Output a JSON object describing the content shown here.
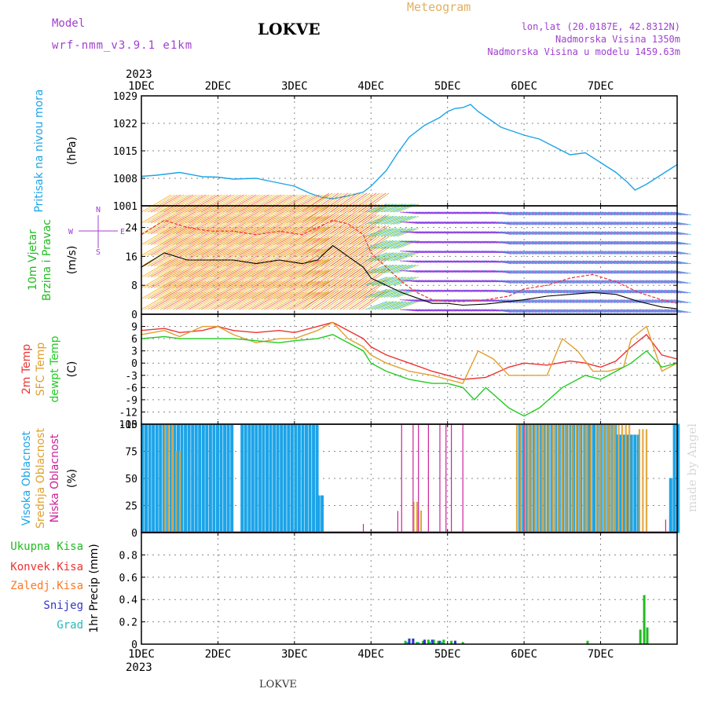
{
  "header": {
    "model_label": "Model",
    "model_value": "wrf-nmm_v3.9.1 e1km",
    "station": "LOKVE",
    "meteogram_label": "Meteogram",
    "lonlat": "lon,lat (20.0187E, 42.8312N)",
    "elevation": "Nadmorska Visina 1350m",
    "model_elevation": "Nadmorska Visina u modelu 1459.63m",
    "year_top": "2023",
    "year_bottom": "2023",
    "footer_station": "LOKVE",
    "credit": "made by Angel"
  },
  "colors": {
    "pressure": "#1ca4e8",
    "temp2m": "#ee3333",
    "sfc_temp": "#e0a030",
    "dewpoint": "#22cc22",
    "high_cloud": "#1ca4e8",
    "mid_cloud": "#e0a030",
    "low_cloud": "#cc2299",
    "purple": "#a040d0",
    "total_precip": "#22bb22",
    "conv_precip": "#ee3333",
    "frozen": "#ff7722",
    "snow": "#3333cc",
    "graupel": "#22bbbb"
  },
  "chart_data": [
    {
      "type": "line",
      "panel": "pressure",
      "title": "",
      "xlabel": "",
      "ylabel_lines": [
        "Pritisak na nivou mora",
        "(hPa)"
      ],
      "x_ticks": [
        "1DEC",
        "2DEC",
        "3DEC",
        "4DEC",
        "5DEC",
        "6DEC",
        "7DEC"
      ],
      "y_ticks": [
        1001,
        1008,
        1015,
        1022,
        1029
      ],
      "ylim": [
        1001,
        1029
      ],
      "grid": true,
      "series": [
        {
          "x": [
            0,
            0.2,
            0.5,
            0.8,
            1.0,
            1.2,
            1.5,
            1.7,
            2.0,
            2.2,
            2.35,
            2.5,
            2.7,
            2.9,
            3.0,
            3.2,
            3.35,
            3.5,
            3.7,
            3.9,
            4.0,
            4.1,
            4.2,
            4.3,
            4.4,
            4.55,
            4.7,
            4.85,
            5.0,
            5.2,
            5.4,
            5.6,
            5.8,
            6.0,
            6.2,
            6.35,
            6.45,
            6.6,
            6.8,
            7.0
          ],
          "y": [
            1008.5,
            1008.8,
            1009.5,
            1008.4,
            1008.3,
            1007.8,
            1008.0,
            1007.2,
            1006.0,
            1004.2,
            1003.2,
            1002.8,
            1003.5,
            1004.5,
            1006.0,
            1010.0,
            1014.5,
            1018.5,
            1021.5,
            1023.5,
            1025.0,
            1025.8,
            1026.0,
            1026.8,
            1025.0,
            1023.0,
            1021.0,
            1020.0,
            1019.0,
            1018.0,
            1016.0,
            1014.0,
            1014.5,
            1012.0,
            1009.5,
            1007.0,
            1005.0,
            1006.5,
            1009.0,
            1011.5
          ]
        }
      ]
    },
    {
      "type": "line",
      "panel": "wind",
      "ylabel_lines": [
        "10m Vjetar",
        "Brzina i Pravac",
        "(m/s)"
      ],
      "direction_key": [
        "N",
        "E",
        "S",
        "W"
      ],
      "y_ticks": [
        0,
        8,
        16,
        24
      ],
      "ylim": [
        0,
        30
      ],
      "grid": true,
      "series": [
        {
          "name": "speed",
          "x": [
            0,
            0.3,
            0.6,
            0.9,
            1.2,
            1.5,
            1.8,
            2.1,
            2.3,
            2.5,
            2.7,
            2.9,
            3.0,
            3.2,
            3.4,
            3.6,
            3.8,
            4.0,
            4.2,
            4.5,
            4.8,
            5.0,
            5.3,
            5.6,
            5.9,
            6.2,
            6.5,
            6.8,
            7.0
          ],
          "y": [
            13,
            17,
            15,
            15,
            15,
            14,
            15,
            14,
            15,
            19,
            16,
            13,
            10,
            8,
            6,
            4.5,
            3,
            3,
            2.5,
            2.8,
            3.5,
            4,
            5,
            5.5,
            6,
            5.5,
            3.5,
            2,
            1.5
          ]
        },
        {
          "name": "gust",
          "x": [
            0,
            0.3,
            0.6,
            0.9,
            1.2,
            1.5,
            1.8,
            2.1,
            2.3,
            2.5,
            2.7,
            2.9,
            3.0,
            3.2,
            3.4,
            3.6,
            3.8,
            4.0,
            4.2,
            4.5,
            4.8,
            5.0,
            5.3,
            5.6,
            5.9,
            6.2,
            6.5,
            6.8,
            7.0
          ],
          "y": [
            22,
            26,
            24,
            23,
            23,
            22,
            23,
            22,
            24,
            26,
            25,
            22,
            17,
            13,
            9,
            6,
            4,
            3.5,
            3.5,
            4,
            5,
            7,
            8,
            10,
            11,
            9,
            6,
            4,
            3
          ]
        }
      ]
    },
    {
      "type": "line",
      "panel": "temperature",
      "ylabel_lines": [
        "2m Temp",
        "SFC Temp",
        "dewpt Temp",
        "(C)"
      ],
      "y_ticks": [
        9,
        6,
        3,
        0,
        -3,
        -6,
        -9,
        -12,
        -15
      ],
      "ylim": [
        -15,
        12
      ],
      "grid": true,
      "series": [
        {
          "name": "2m Temp",
          "x": [
            0,
            0.3,
            0.5,
            0.8,
            1.0,
            1.2,
            1.5,
            1.8,
            2.0,
            2.3,
            2.5,
            2.7,
            2.9,
            3.0,
            3.2,
            3.5,
            3.8,
            4.0,
            4.2,
            4.5,
            4.8,
            5.0,
            5.3,
            5.6,
            5.8,
            6.0,
            6.2,
            6.4,
            6.6,
            6.8,
            7.0
          ],
          "y": [
            8,
            8.5,
            7.5,
            8,
            9,
            8,
            7.5,
            8,
            7.5,
            9,
            10,
            8,
            6,
            4,
            2,
            0,
            -2,
            -3,
            -4,
            -3.5,
            -1,
            0,
            -0.5,
            0.5,
            0,
            -1,
            0.5,
            4,
            7,
            2,
            1
          ]
        },
        {
          "name": "SFC Temp",
          "x": [
            0,
            0.3,
            0.5,
            0.8,
            1.0,
            1.2,
            1.5,
            1.8,
            2.0,
            2.3,
            2.5,
            2.7,
            2.9,
            3.0,
            3.2,
            3.5,
            3.8,
            4.0,
            4.2,
            4.4,
            4.6,
            4.8,
            5.0,
            5.3,
            5.5,
            5.7,
            5.9,
            6.1,
            6.3,
            6.4,
            6.6,
            6.8,
            7.0
          ],
          "y": [
            7,
            8,
            6.5,
            9,
            9,
            7,
            5,
            6,
            6,
            8,
            10,
            6,
            4,
            2,
            0,
            -2,
            -3,
            -4,
            -5,
            3,
            1,
            -3,
            -3,
            -3,
            6,
            3,
            -2,
            -2,
            -1,
            6,
            9,
            -2,
            0
          ]
        },
        {
          "name": "dewpt Temp",
          "x": [
            0,
            0.3,
            0.5,
            0.8,
            1.0,
            1.2,
            1.5,
            1.8,
            2.0,
            2.3,
            2.5,
            2.7,
            2.9,
            3.0,
            3.2,
            3.5,
            3.8,
            4.0,
            4.2,
            4.35,
            4.5,
            4.8,
            5.0,
            5.2,
            5.5,
            5.8,
            6.0,
            6.2,
            6.4,
            6.6,
            6.8,
            7.0
          ],
          "y": [
            6,
            6.5,
            6,
            6,
            6,
            6,
            5.5,
            5,
            5.5,
            6,
            7,
            5,
            3,
            0,
            -2,
            -4,
            -5,
            -5,
            -6,
            -9,
            -6,
            -11,
            -13,
            -11,
            -6,
            -3,
            -4,
            -2,
            0,
            3,
            -1,
            0
          ]
        }
      ]
    },
    {
      "type": "bar",
      "panel": "clouds",
      "ylabel_lines": [
        "Visoka Oblacnost",
        "Srednja Oblacnost",
        "Niska Oblacnost",
        "(%)"
      ],
      "y_ticks": [
        0,
        25,
        50,
        75,
        100
      ],
      "ylim": [
        0,
        100
      ],
      "grid": true,
      "series": [
        {
          "name": "Visoka Oblacnost",
          "segments": [
            [
              0.0,
              1.2,
              100
            ],
            [
              1.3,
              2.3,
              100
            ],
            [
              2.3,
              2.35,
              34
            ],
            [
              4.93,
              5.85,
              100
            ],
            [
              5.85,
              6.2,
              100
            ],
            [
              6.2,
              6.5,
              90
            ],
            [
              6.9,
              6.95,
              50
            ],
            [
              6.95,
              7.0,
              100
            ]
          ]
        },
        {
          "name": "Srednja Oblacnost",
          "segments": [
            [
              0.3,
              0.4,
              100
            ],
            [
              0.45,
              0.5,
              75
            ],
            [
              3.55,
              3.6,
              28
            ],
            [
              3.6,
              3.65,
              20
            ],
            [
              4.9,
              5.4,
              100
            ],
            [
              5.4,
              5.9,
              100
            ],
            [
              5.95,
              6.4,
              100
            ],
            [
              6.5,
              6.6,
              95
            ]
          ]
        },
        {
          "name": "Niska Oblacnost",
          "points": [
            [
              2.9,
              8
            ],
            [
              3.35,
              20
            ],
            [
              3.4,
              100
            ],
            [
              3.55,
              100
            ],
            [
              3.62,
              100
            ],
            [
              3.75,
              100
            ],
            [
              3.9,
              100
            ],
            [
              3.98,
              100
            ],
            [
              4.05,
              100
            ],
            [
              4.2,
              100
            ],
            [
              5.0,
              100
            ],
            [
              6.85,
              12
            ]
          ]
        }
      ]
    },
    {
      "type": "bar",
      "panel": "precip",
      "ylabel_lines": [
        "1hr Precip (mm)"
      ],
      "legend": [
        "Ukupna Kisa",
        "Konvek.Kisa",
        "Zaledj.Kisa",
        "Snijeg",
        "Grad"
      ],
      "y_ticks": [
        0,
        0.2,
        0.4,
        0.6,
        0.8
      ],
      "ylim": [
        0,
        1.0
      ],
      "grid": true,
      "series": [
        {
          "name": "Ukupna Kisa",
          "x": [
            3.45,
            3.5,
            3.55,
            3.6,
            3.68,
            3.75,
            3.82,
            3.88,
            3.95,
            4.05,
            4.1,
            4.2,
            5.83,
            6.52,
            6.57,
            6.61
          ],
          "y": [
            0.03,
            0.05,
            0.05,
            0.02,
            0.03,
            0.04,
            0.04,
            0.03,
            0.04,
            0.03,
            0.03,
            0.02,
            0.03,
            0.13,
            0.44,
            0.15
          ]
        },
        {
          "name": "Snijeg",
          "x": [
            3.5,
            3.55,
            3.7,
            3.8,
            3.9,
            4.1
          ],
          "y": [
            0.05,
            0.05,
            0.04,
            0.04,
            0.03,
            0.03
          ]
        },
        {
          "name": "Grad",
          "x": [
            3.47,
            3.62,
            3.78,
            3.92
          ],
          "y": [
            0.02,
            0.02,
            0.02,
            0.02
          ]
        }
      ]
    }
  ]
}
